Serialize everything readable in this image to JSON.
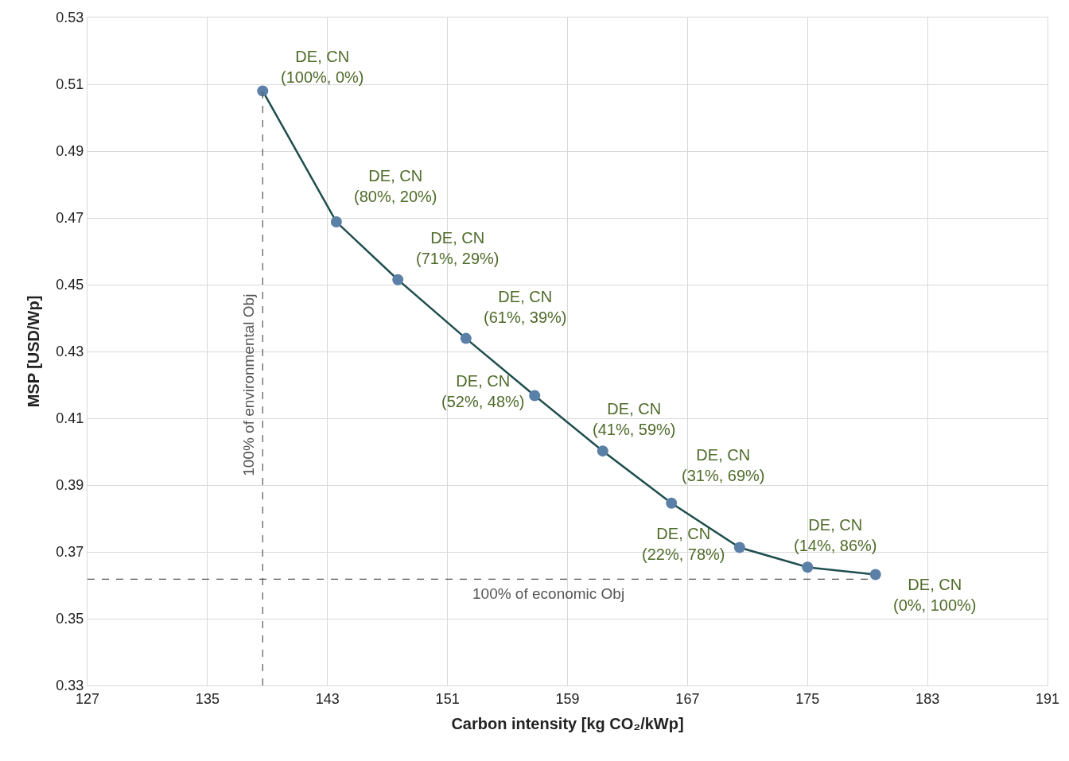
{
  "chart_data": {
    "type": "line",
    "xlabel": "Carbon intensity [kg CO₂/kWp]",
    "ylabel": "MSP [USD/Wp]",
    "x": [
      138.68,
      143.59,
      147.69,
      152.23,
      156.81,
      161.35,
      165.93,
      170.47,
      175.0,
      179.53
    ],
    "series": [
      {
        "color": "#1f4e4f",
        "colors": [
          "#5b80a8",
          "#5b80a8",
          "#5b80a8",
          "#5b80a8",
          "#5b80a8",
          "#5b80a8",
          "#5b80a8",
          "#5b80a8",
          "#5b80a8",
          "#5b80a8"
        ],
        "values": [
          0.508,
          0.4688,
          0.4515,
          0.4339,
          0.4168,
          0.4002,
          0.3846,
          0.3713,
          0.3654,
          0.3632
        ]
      }
    ],
    "marker": "circle",
    "line_style": "solid",
    "grid": true,
    "xlim": [
      127,
      191
    ],
    "xticks": [
      127,
      135,
      143,
      151,
      159,
      167,
      175,
      183,
      191
    ],
    "ylim": [
      0.33,
      0.53
    ],
    "yticks": [
      0.33,
      0.35,
      0.37,
      0.39,
      0.41,
      0.43,
      0.45,
      0.47,
      0.49,
      0.51,
      0.53
    ],
    "ref_lines": [
      {
        "axis": "x",
        "value": 138.68,
        "label": "100% of environmental Obj",
        "color": "#555555",
        "line_style": "dashed"
      },
      {
        "axis": "y",
        "value": 0.3618,
        "label": "100% of economic Obj",
        "color": "#555555",
        "line_style": "dashed"
      }
    ],
    "annotations": [
      {
        "text": "DE, CN\n(100%, 0%)",
        "x": 138.68,
        "y": 0.508
      },
      {
        "text": "DE, CN\n(80%, 20%)",
        "x": 143.59,
        "y": 0.4688
      },
      {
        "text": "DE, CN\n(71%, 29%)",
        "x": 147.69,
        "y": 0.4515
      },
      {
        "text": "DE, CN\n(61%, 39%)",
        "x": 152.23,
        "y": 0.4339
      },
      {
        "text": "DE, CN\n(52%, 48%)",
        "x": 156.81,
        "y": 0.4168
      },
      {
        "text": "DE, CN\n(41%, 59%)",
        "x": 161.35,
        "y": 0.4002
      },
      {
        "text": "DE, CN\n(31%, 69%)",
        "x": 165.93,
        "y": 0.3846
      },
      {
        "text": "DE, CN\n(22%, 78%)",
        "x": 170.47,
        "y": 0.3713
      },
      {
        "text": "DE, CN\n(14%, 86%)",
        "x": 175.0,
        "y": 0.3654
      },
      {
        "text": "DE, CN\n(0%, 100%)",
        "x": 179.53,
        "y": 0.3632
      }
    ]
  }
}
